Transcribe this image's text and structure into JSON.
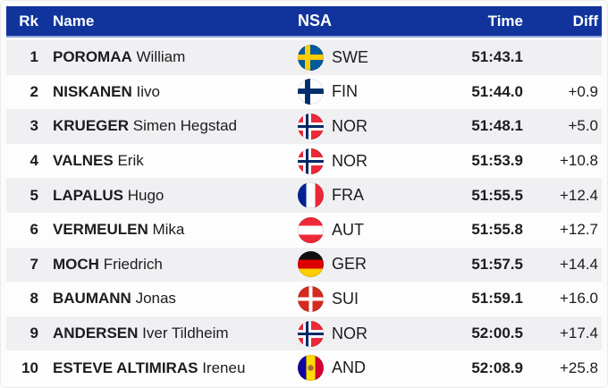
{
  "header": {
    "rank": "Rk",
    "name": "Name",
    "nsa": "NSA",
    "time": "Time",
    "diff": "Diff"
  },
  "colors": {
    "header_bg": "#10349c",
    "header_text": "#ffffff",
    "row_odd": "#f0f0f3",
    "row_even": "#fdfdfe",
    "text": "#1c1c1e"
  },
  "rows": [
    {
      "rank": "1",
      "surname": "POROMAA",
      "given": "William",
      "flag": "swe",
      "nsa": "SWE",
      "time": "51:43.1",
      "diff": ""
    },
    {
      "rank": "2",
      "surname": "NISKANEN",
      "given": "Iivo",
      "flag": "fin",
      "nsa": "FIN",
      "time": "51:44.0",
      "diff": "+0.9"
    },
    {
      "rank": "3",
      "surname": "KRUEGER",
      "given": "Simen Hegstad",
      "flag": "nor",
      "nsa": "NOR",
      "time": "51:48.1",
      "diff": "+5.0"
    },
    {
      "rank": "4",
      "surname": "VALNES",
      "given": "Erik",
      "flag": "nor",
      "nsa": "NOR",
      "time": "51:53.9",
      "diff": "+10.8"
    },
    {
      "rank": "5",
      "surname": "LAPALUS",
      "given": "Hugo",
      "flag": "fra",
      "nsa": "FRA",
      "time": "51:55.5",
      "diff": "+12.4"
    },
    {
      "rank": "6",
      "surname": "VERMEULEN",
      "given": "Mika",
      "flag": "aut",
      "nsa": "AUT",
      "time": "51:55.8",
      "diff": "+12.7"
    },
    {
      "rank": "7",
      "surname": "MOCH",
      "given": "Friedrich",
      "flag": "ger",
      "nsa": "GER",
      "time": "51:57.5",
      "diff": "+14.4"
    },
    {
      "rank": "8",
      "surname": "BAUMANN",
      "given": "Jonas",
      "flag": "sui",
      "nsa": "SUI",
      "time": "51:59.1",
      "diff": "+16.0"
    },
    {
      "rank": "9",
      "surname": "ANDERSEN",
      "given": "Iver Tildheim",
      "flag": "nor",
      "nsa": "NOR",
      "time": "52:00.5",
      "diff": "+17.4"
    },
    {
      "rank": "10",
      "surname": "ESTEVE ALTIMIRAS",
      "given": "Ireneu",
      "flag": "and",
      "nsa": "AND",
      "time": "52:08.9",
      "diff": "+25.8"
    }
  ]
}
